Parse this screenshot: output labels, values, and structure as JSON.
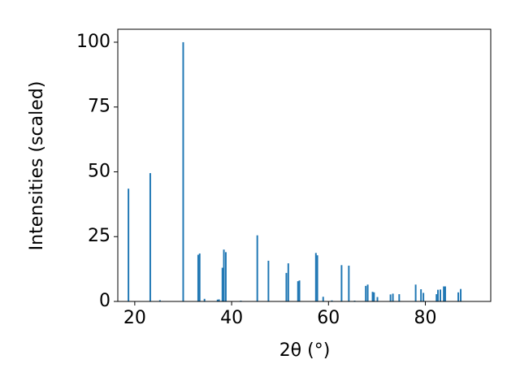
{
  "chart_data": {
    "type": "bar",
    "x_label": "2θ (°)",
    "y_label": "Intensities (scaled)",
    "color": "#1f77b4",
    "x": [
      18.7,
      23.2,
      25.2,
      30.0,
      33.1,
      33.4,
      34.4,
      37.1,
      37.4,
      38.1,
      38.4,
      38.8,
      41.9,
      45.3,
      47.6,
      51.3,
      51.7,
      53.7,
      54.0,
      57.4,
      57.7,
      58.9,
      60.7,
      62.7,
      64.2,
      65.4,
      67.7,
      68.1,
      69.1,
      69.4,
      70.1,
      72.8,
      73.3,
      74.6,
      78.0,
      79.1,
      79.6,
      82.3,
      82.6,
      83.1,
      83.8,
      84.1,
      86.8,
      87.3
    ],
    "values": [
      43.5,
      49.5,
      0.5,
      100,
      18,
      18.5,
      1,
      0.7,
      0.8,
      13,
      20,
      19,
      0.3,
      25.5,
      15.7,
      11,
      14.7,
      7.8,
      8.1,
      18.7,
      17.8,
      1.8,
      0.4,
      14,
      13.8,
      0.3,
      6,
      6.5,
      3.7,
      3.5,
      1.7,
      2.7,
      3,
      2.8,
      6.5,
      4.7,
      3.3,
      2.8,
      4.5,
      4.6,
      5.8,
      5.8,
      3.5,
      4.8
    ],
    "xlim": [
      16.5,
      93.5
    ],
    "xticks": [
      20,
      40,
      60,
      80
    ],
    "ylim": [
      0,
      105
    ],
    "yticks": [
      0,
      25,
      50,
      75,
      100
    ]
  }
}
